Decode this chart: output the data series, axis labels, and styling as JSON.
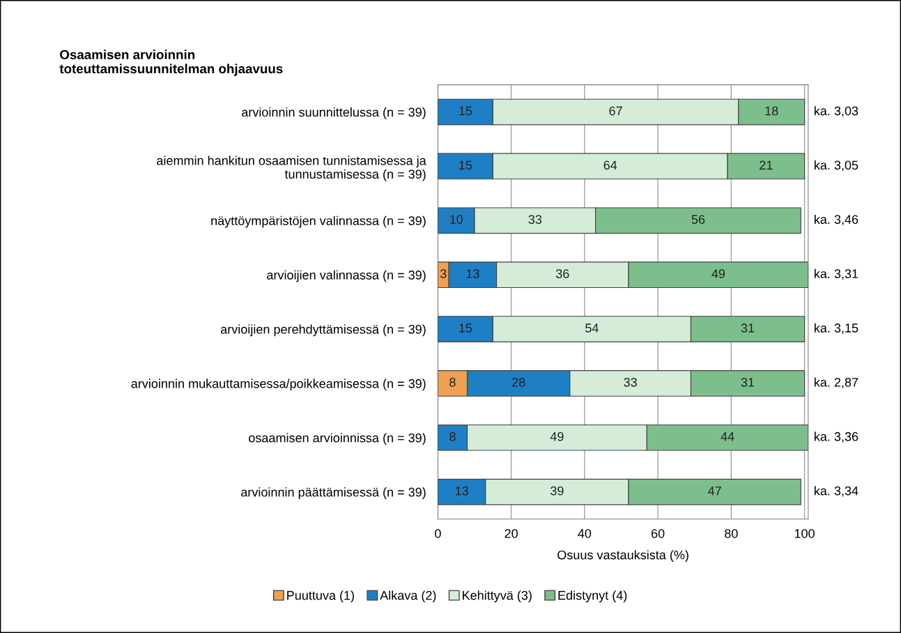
{
  "chart_data": {
    "type": "bar",
    "orientation": "horizontal",
    "stacked": true,
    "title": "Osaamisen arvioinnin\ntoteuttamissuunnitelman ohjaavuus",
    "xlabel": "Osuus vastauksista (%)",
    "categories": [
      "arvioinnin suunnittelussa (n = 39)",
      "aiemmin hankitun osaamisen tunnistamisessa ja\ntunnustamisessa (n = 39)",
      "näyttöympäristöjen valinnassa (n = 39)",
      "arvioijien valinnassa (n = 39)",
      "arvioijien perehdyttämisessä (n = 39)",
      "arvioinnin mukauttamisessa/poikkeamisessa (n = 39)",
      "osaamisen arvioinnissa (n = 39)",
      "arvioinnin päättämisessä (n = 39)"
    ],
    "series": [
      {
        "name": "Puuttuva (1)",
        "color": "#f0a050",
        "values": [
          0,
          0,
          0,
          3,
          0,
          8,
          0,
          0
        ],
        "value_labels": [
          null,
          null,
          null,
          "3",
          null,
          "8",
          null,
          null
        ]
      },
      {
        "name": "Alkava (2)",
        "color": "#1f7fc4",
        "values": [
          15,
          15,
          10,
          13,
          15,
          28,
          8,
          13
        ],
        "value_labels": [
          "15",
          "15",
          "10",
          "13",
          "15",
          "28",
          "8",
          "13"
        ]
      },
      {
        "name": "Kehittyvä (3)",
        "color": "#d5ecd8",
        "values": [
          67,
          64,
          33,
          36,
          54,
          33,
          49,
          39
        ],
        "value_labels": [
          "67",
          "64",
          "33",
          "36",
          "54",
          "33",
          "49",
          "39"
        ]
      },
      {
        "name": "Edistynyt (4)",
        "color": "#7dbf8c",
        "values": [
          18,
          21,
          56,
          49,
          31,
          31,
          44,
          47
        ],
        "value_labels": [
          "18",
          "21",
          "56",
          "49",
          "31",
          "31",
          "44",
          "47"
        ]
      }
    ],
    "xlim": [
      0,
      101
    ],
    "xticks": [
      0,
      20,
      40,
      60,
      80,
      100
    ],
    "grid": "x",
    "legend": "bottom",
    "annotations": [
      "ka. 3,03",
      "ka. 3,05",
      "ka. 3,46",
      "ka. 3,31",
      "ka. 3,15",
      "ka. 2,87",
      "ka. 3,36",
      "ka. 3,34"
    ]
  }
}
